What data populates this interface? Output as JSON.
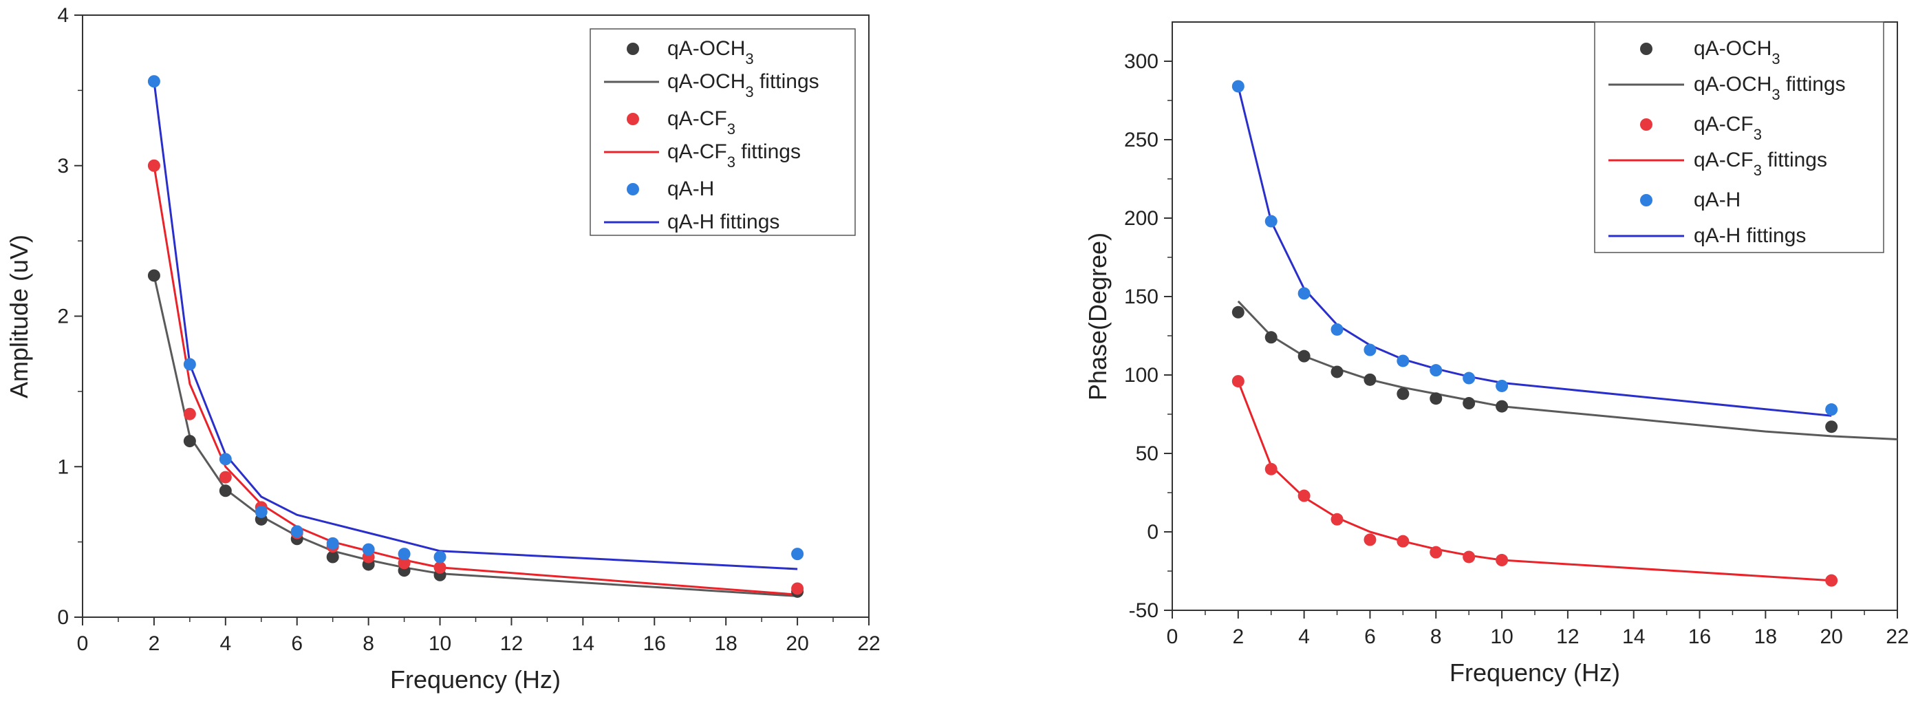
{
  "chart_data": [
    {
      "type": "scatter",
      "panel": "left",
      "xlabel": "Frequency (Hz)",
      "ylabel": "Amplitude (uV)",
      "xlim": [
        0,
        22
      ],
      "ylim": [
        0,
        4
      ],
      "xticks": [
        0,
        2,
        4,
        6,
        8,
        10,
        12,
        14,
        16,
        18,
        20,
        22
      ],
      "yticks": [
        0,
        1,
        2,
        3,
        4
      ],
      "legend_position": "top-right",
      "series": [
        {
          "name": "qA-OCH3",
          "kind": "points",
          "color": "#3d3d3d",
          "x": [
            2,
            3,
            4,
            5,
            6,
            7,
            8,
            9,
            10,
            20
          ],
          "y": [
            2.27,
            1.17,
            0.84,
            0.65,
            0.52,
            0.4,
            0.35,
            0.31,
            0.28,
            0.17
          ]
        },
        {
          "name": "qA-OCH3 fittings",
          "kind": "line",
          "color": "#5a5a5a",
          "x": [
            2,
            3,
            4,
            5,
            6,
            7,
            8,
            9,
            10,
            20
          ],
          "y": [
            2.27,
            1.2,
            0.85,
            0.67,
            0.54,
            0.44,
            0.38,
            0.33,
            0.29,
            0.14
          ]
        },
        {
          "name": "qA-CF3",
          "kind": "points",
          "color": "#e8383d",
          "x": [
            2,
            3,
            4,
            5,
            6,
            7,
            8,
            9,
            10,
            20
          ],
          "y": [
            3.0,
            1.35,
            0.93,
            0.73,
            0.56,
            0.47,
            0.4,
            0.36,
            0.33,
            0.19
          ]
        },
        {
          "name": "qA-CF3 fittings",
          "kind": "line",
          "color": "#e8232a",
          "x": [
            2,
            3,
            4,
            5,
            6,
            7,
            8,
            9,
            10,
            20
          ],
          "y": [
            3.0,
            1.55,
            1.0,
            0.75,
            0.6,
            0.5,
            0.44,
            0.38,
            0.33,
            0.15
          ]
        },
        {
          "name": "qA-H",
          "kind": "points",
          "color": "#2f7fe0",
          "x": [
            2,
            3,
            4,
            5,
            6,
            7,
            8,
            9,
            10,
            20
          ],
          "y": [
            3.56,
            1.68,
            1.05,
            0.7,
            0.57,
            0.49,
            0.45,
            0.42,
            0.4,
            0.42
          ]
        },
        {
          "name": "qA-H fittings",
          "kind": "line",
          "color": "#2a2fc9",
          "x": [
            2,
            3,
            4,
            5,
            6,
            7,
            8,
            9,
            10,
            20
          ],
          "y": [
            3.56,
            1.68,
            1.08,
            0.8,
            0.68,
            0.62,
            0.56,
            0.5,
            0.44,
            0.32
          ]
        }
      ]
    },
    {
      "type": "scatter",
      "panel": "right",
      "xlabel": "Frequency (Hz)",
      "ylabel": "Phase(Degree)",
      "xlim": [
        0,
        22
      ],
      "ylim": [
        -50,
        325
      ],
      "xticks": [
        0,
        2,
        4,
        6,
        8,
        10,
        12,
        14,
        16,
        18,
        20,
        22
      ],
      "yticks": [
        -50,
        0,
        50,
        100,
        150,
        200,
        250,
        300
      ],
      "legend_position": "top-right",
      "series": [
        {
          "name": "qA-OCH3",
          "kind": "points",
          "color": "#3d3d3d",
          "x": [
            2,
            3,
            4,
            5,
            6,
            7,
            8,
            9,
            10,
            20
          ],
          "y": [
            140,
            124,
            112,
            102,
            97,
            88,
            85,
            82,
            80,
            67
          ]
        },
        {
          "name": "qA-OCH3 fittings",
          "kind": "line",
          "color": "#5a5a5a",
          "x": [
            2,
            3,
            4,
            5,
            6,
            7,
            8,
            9,
            10,
            12,
            14,
            16,
            18,
            20,
            22
          ],
          "y": [
            147,
            125,
            112,
            104,
            97,
            92,
            88,
            84,
            80,
            76,
            72,
            68,
            64,
            61,
            59
          ]
        },
        {
          "name": "qA-CF3",
          "kind": "points",
          "color": "#e8383d",
          "x": [
            2,
            3,
            4,
            5,
            6,
            7,
            8,
            9,
            10,
            20
          ],
          "y": [
            96,
            40,
            23,
            8,
            -5,
            -6,
            -13,
            -16,
            -18,
            -31
          ]
        },
        {
          "name": "qA-CF3 fittings",
          "kind": "line",
          "color": "#e8232a",
          "x": [
            2,
            3,
            4,
            5,
            6,
            7,
            8,
            9,
            10,
            20
          ],
          "y": [
            96,
            42,
            22,
            9,
            0,
            -6,
            -11,
            -15,
            -18,
            -31
          ]
        },
        {
          "name": "qA-H",
          "kind": "points",
          "color": "#2f7fe0",
          "x": [
            2,
            3,
            4,
            5,
            6,
            7,
            8,
            9,
            10,
            20
          ],
          "y": [
            284,
            198,
            152,
            129,
            116,
            109,
            103,
            98,
            93,
            78
          ]
        },
        {
          "name": "qA-H fittings",
          "kind": "line",
          "color": "#2a2fc9",
          "x": [
            2,
            3,
            4,
            5,
            6,
            7,
            8,
            9,
            10,
            20
          ],
          "y": [
            284,
            198,
            155,
            132,
            119,
            110,
            104,
            99,
            95,
            74
          ]
        }
      ]
    }
  ]
}
